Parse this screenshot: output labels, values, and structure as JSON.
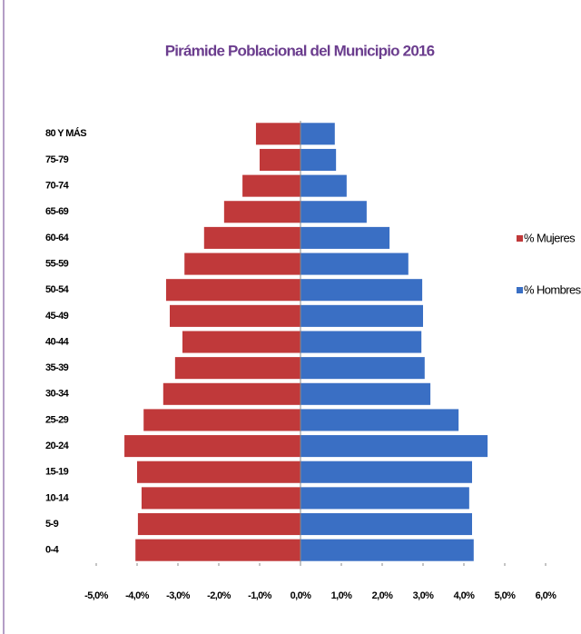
{
  "chart_data": {
    "type": "pyramid",
    "title": "Pirámide Poblacional del Municipio 2016",
    "categories": [
      "80 Y MÁS",
      "75-79",
      "70-74",
      "65-69",
      "60-64",
      "55-59",
      "50-54",
      "45-49",
      "40-44",
      "35-39",
      "30-34",
      "25-29",
      "20-24",
      "15-19",
      "10-14",
      "5-9",
      "0-4"
    ],
    "series": [
      {
        "name": "% Mujeres",
        "color": "#c0393a",
        "values": [
          -1.09,
          -1.0,
          -1.42,
          -1.87,
          -2.36,
          -2.84,
          -3.29,
          -3.2,
          -2.89,
          -3.07,
          -3.36,
          -3.84,
          -4.31,
          -4.0,
          -3.89,
          -3.98,
          -4.04
        ]
      },
      {
        "name": "% Hombres",
        "color": "#3a6fc4",
        "values": [
          0.84,
          0.87,
          1.13,
          1.62,
          2.18,
          2.64,
          2.98,
          3.0,
          2.96,
          3.04,
          3.18,
          3.87,
          4.58,
          4.2,
          4.13,
          4.2,
          4.24
        ]
      }
    ],
    "xlim": [
      -5,
      6
    ],
    "xticks": [
      {
        "value": -5,
        "label": "-5,0%"
      },
      {
        "value": -4,
        "label": "-4,0%"
      },
      {
        "value": -3,
        "label": "-3,0%"
      },
      {
        "value": -2,
        "label": "-2,0%"
      },
      {
        "value": -1,
        "label": "-1,0%"
      },
      {
        "value": 0,
        "label": "0,0%"
      },
      {
        "value": 1,
        "label": "1,0%"
      },
      {
        "value": 2,
        "label": "2,0%"
      },
      {
        "value": 3,
        "label": "3,0%"
      },
      {
        "value": 4,
        "label": "4,0%"
      },
      {
        "value": 5,
        "label": "5,0%"
      },
      {
        "value": 6,
        "label": "6,0%"
      }
    ],
    "legend": "right"
  }
}
